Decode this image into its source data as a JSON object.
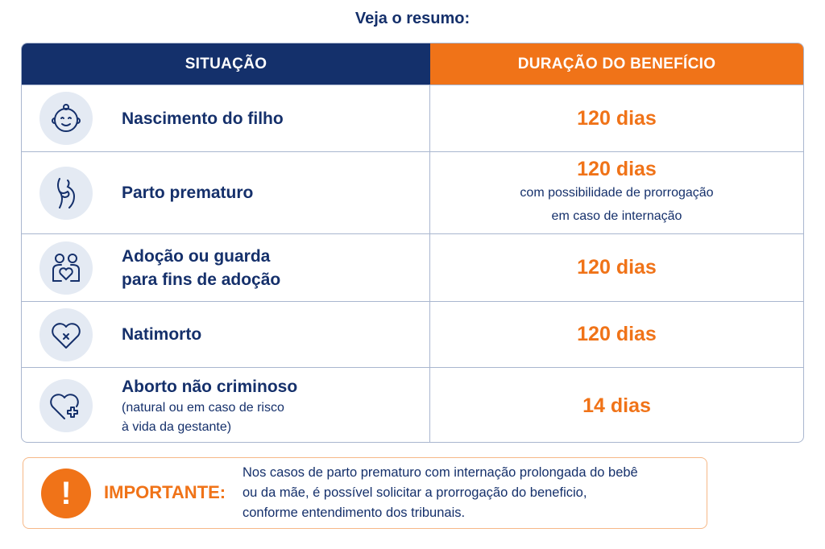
{
  "title": "Veja o resumo:",
  "table": {
    "headers": [
      "SITUAÇÃO",
      "DURAÇÃO DO BENEFÍCIO"
    ],
    "rows": [
      {
        "icon": "baby-face-icon",
        "label": "Nascimento do filho",
        "value": "120 dias"
      },
      {
        "icon": "pregnant-belly-icon",
        "label": "Parto prematuro",
        "value": "120 dias",
        "value_note": [
          "com possibilidade de prorrogação",
          "em caso de internação"
        ]
      },
      {
        "icon": "parents-heart-icon",
        "label": [
          "Adoção ou guarda",
          "para fins de adoção"
        ],
        "value": "120 dias"
      },
      {
        "icon": "heart-x-icon",
        "label": "Natimorto",
        "value": "120 dias"
      },
      {
        "icon": "heart-plus-icon",
        "label": "Aborto não criminoso",
        "sublabel": [
          "(natural ou em caso de risco",
          "à vida da gestante)"
        ],
        "value": "14 dias"
      }
    ]
  },
  "note": {
    "icon": "exclamation-icon",
    "icon_text": "!",
    "label": "IMPORTANTE:",
    "lines": [
      "Nos casos de parto prematuro com internação prolongada do bebê",
      "ou da mãe, é possível solicitar a prorrogação do beneficio,",
      "conforme entendimento dos tribunais."
    ]
  },
  "colors": {
    "navy": "#14306b",
    "orange": "#f07318",
    "icon_bg": "#e4eaf3"
  }
}
